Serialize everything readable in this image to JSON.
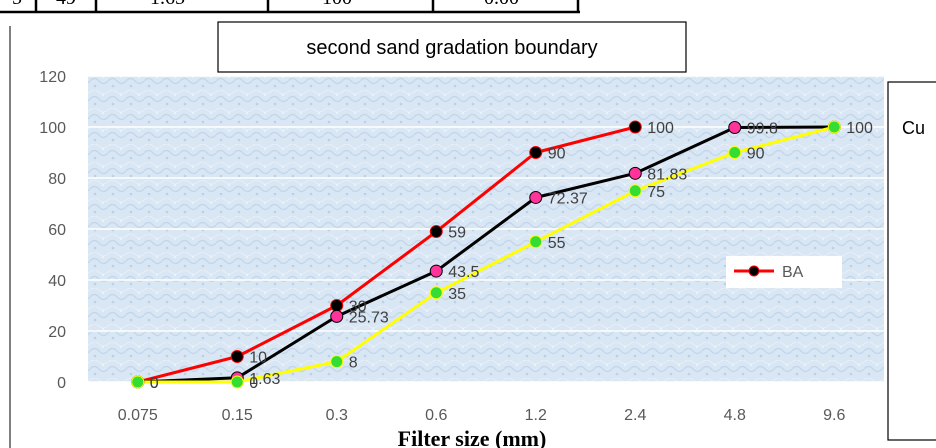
{
  "table_fragment": {
    "cells": [
      "5",
      "49",
      "1.65",
      "100",
      "0.00"
    ]
  },
  "side_box": {
    "text": "Cu"
  },
  "chart_data": {
    "type": "line",
    "title": "second sand gradation boundary",
    "xlabel": "Filter size (mm)",
    "ylabel": "",
    "categories": [
      "0.075",
      "0.15",
      "0.3",
      "0.6",
      "1.2",
      "2.4",
      "4.8",
      "9.6"
    ],
    "ylim": [
      0,
      120
    ],
    "yticks": [
      0,
      20,
      40,
      60,
      80,
      100,
      120
    ],
    "grid": true,
    "legend": {
      "position": "right",
      "entries": [
        "BA"
      ]
    },
    "series": [
      {
        "name": "BA",
        "values": [
          0,
          10,
          30,
          59,
          90,
          100,
          null,
          null
        ],
        "labels": [
          "0",
          "10",
          "30",
          "59",
          "90",
          "100",
          "",
          ""
        ],
        "color": "#ff0000",
        "marker_color": "#000000"
      },
      {
        "values": [
          0,
          1.63,
          25.73,
          43.5,
          72.37,
          81.83,
          99.8,
          100
        ],
        "labels": [
          "",
          "1.63",
          "25.73",
          "43.5",
          "72.37",
          "81.83",
          "99.8",
          "100"
        ],
        "color": "#000000",
        "marker_color": "#ff3399"
      },
      {
        "values": [
          0,
          0,
          8,
          35,
          55,
          75,
          90,
          100
        ],
        "labels": [
          "0",
          "0",
          "8",
          "35",
          "55",
          "75",
          "90",
          ""
        ],
        "color": "#ffff00",
        "marker_color": "#33dd33"
      }
    ]
  }
}
